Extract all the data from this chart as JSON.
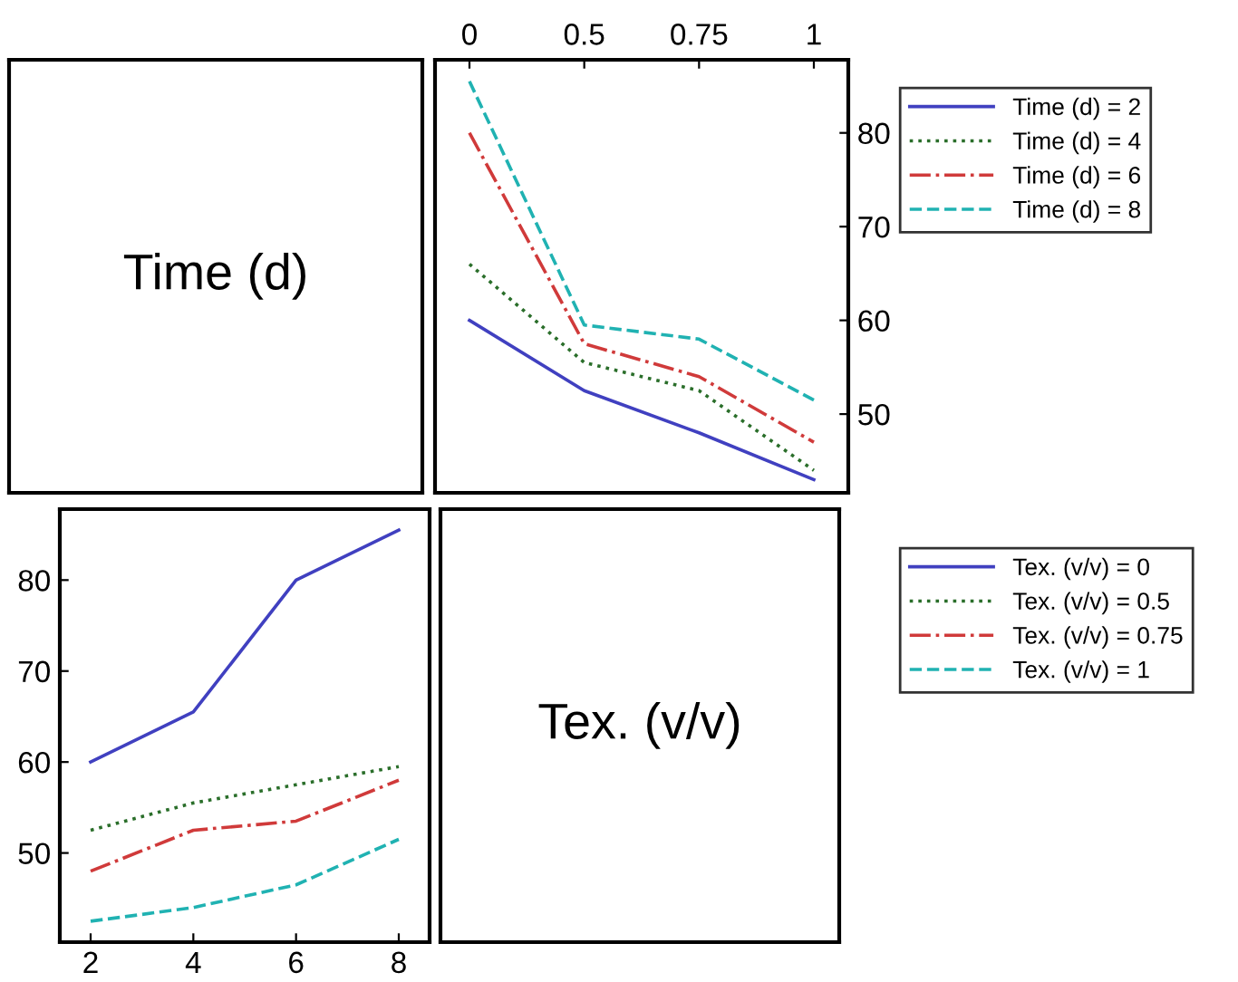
{
  "chart_data": [
    {
      "type": "other",
      "annotations": [
        "Time (d)"
      ]
    },
    {
      "type": "line",
      "categories": [
        "0",
        "0.5",
        "0.75",
        "1"
      ],
      "ylim": [
        41.6,
        87.8
      ],
      "yticks": [
        50,
        60,
        70,
        80
      ],
      "grid": false,
      "legend": "right",
      "series": [
        {
          "name": "Time (d) = 2",
          "color": "#4040c0",
          "line_style": "solid",
          "values": [
            60,
            52.5,
            48,
            43
          ]
        },
        {
          "name": "Time (d) = 4",
          "color": "#2a6e2a",
          "line_style": "dotted",
          "values": [
            66,
            55.5,
            52.5,
            44
          ]
        },
        {
          "name": "Time (d) = 6",
          "color": "#d03a3a",
          "line_style": "dashdot",
          "values": [
            80,
            57.5,
            54,
            47
          ]
        },
        {
          "name": "Time (d) = 8",
          "color": "#20b2b2",
          "line_style": "dashed",
          "values": [
            85.5,
            59.5,
            58,
            51.5
          ]
        }
      ]
    },
    {
      "type": "line",
      "categories": [
        "2",
        "4",
        "6",
        "8"
      ],
      "ylim": [
        40.2,
        87.8
      ],
      "yticks": [
        50,
        60,
        70,
        80
      ],
      "grid": false,
      "legend": "right",
      "series": [
        {
          "name": "Tex. (v/v) = 0",
          "color": "#4040c0",
          "line_style": "solid",
          "values": [
            60,
            65.5,
            80,
            85.5
          ]
        },
        {
          "name": "Tex. (v/v) = 0.5",
          "color": "#2a6e2a",
          "line_style": "dotted",
          "values": [
            52.5,
            55.5,
            57.5,
            59.5
          ]
        },
        {
          "name": "Tex. (v/v) = 0.75",
          "color": "#d03a3a",
          "line_style": "dashdot",
          "values": [
            48,
            52.5,
            53.5,
            58
          ]
        },
        {
          "name": "Tex. (v/v) = 1",
          "color": "#20b2b2",
          "line_style": "dashed",
          "values": [
            42.5,
            44,
            46.5,
            51.5
          ]
        }
      ]
    },
    {
      "type": "other",
      "annotations": [
        "Tex. (v/v)"
      ]
    }
  ]
}
